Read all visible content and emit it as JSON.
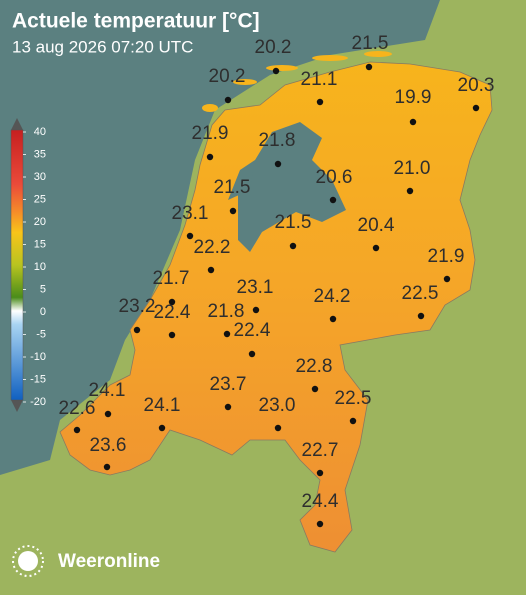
{
  "header": {
    "title": "Actuele temperatuur [°C]",
    "subtitle": "13 aug 2026 07:20 UTC"
  },
  "legend": {
    "ticks": [
      40,
      35,
      30,
      25,
      20,
      15,
      10,
      5,
      0,
      -5,
      -10,
      -15,
      -20
    ]
  },
  "stations": [
    "20.2",
    "21.5",
    "20.2",
    "21.1",
    "20.3",
    "19.9",
    "21.9",
    "21.8",
    "21.0",
    "21.5",
    "20.6",
    "23.1",
    "21.5",
    "20.4",
    "22.2",
    "21.9",
    "21.7",
    "23.1",
    "24.2",
    "22.5",
    "23.2",
    "22.4",
    "21.8",
    "22.4",
    "22.8",
    "24.1",
    "23.7",
    "22.5",
    "22.6",
    "24.1",
    "23.0",
    "23.6",
    "22.7",
    "24.4"
  ],
  "brand": "Weeronline"
}
